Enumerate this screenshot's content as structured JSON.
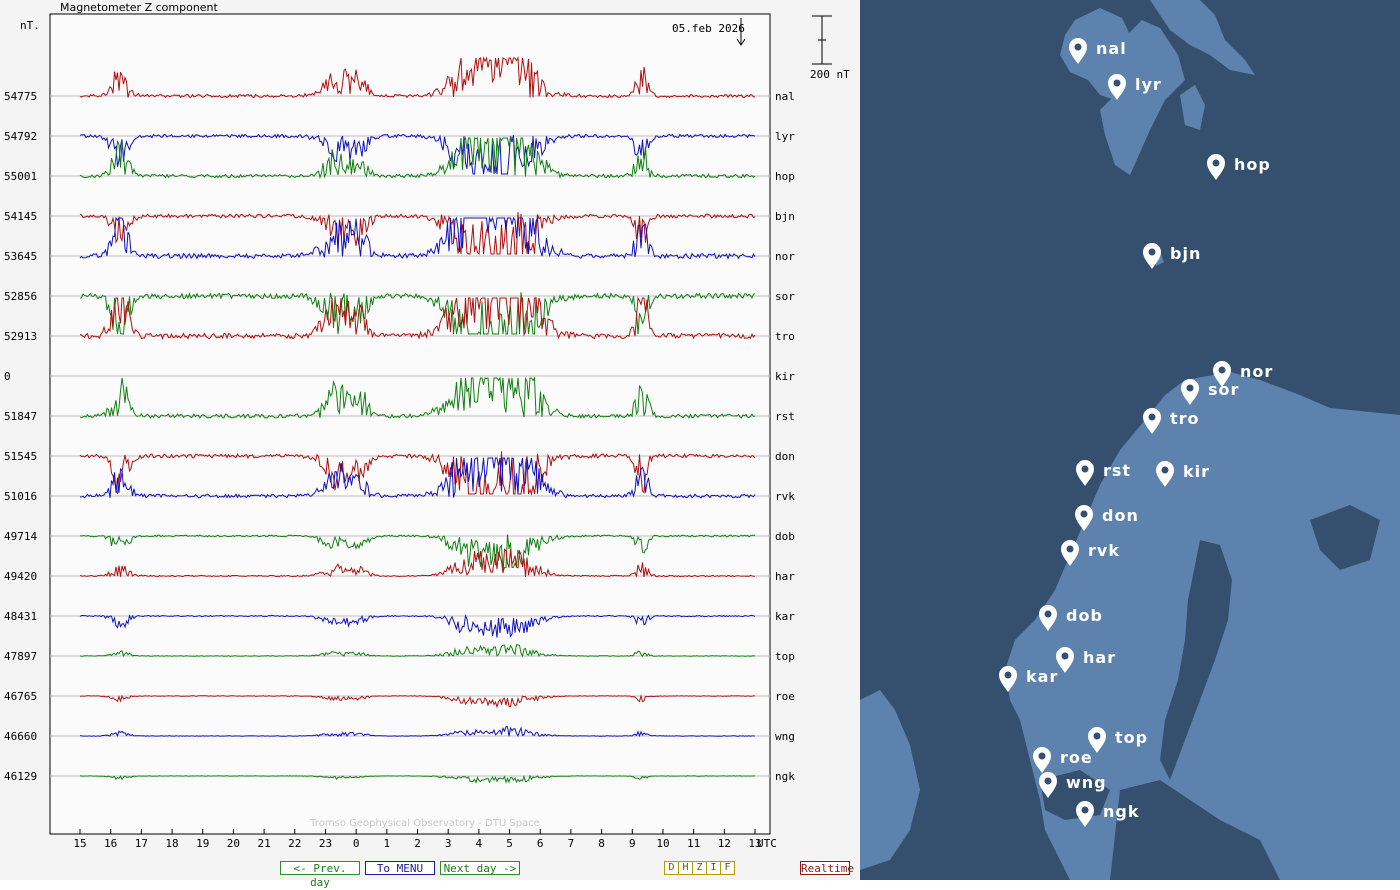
{
  "chart": {
    "title": "Magnetometer Z component",
    "y_unit": "nT.",
    "date": "05.feb 2026",
    "scale_label": "200 nT",
    "credit": "Tromso Geophysical Observatory - DTU Space",
    "utc_label": "UTC"
  },
  "chart_data": {
    "type": "line",
    "title": "Magnetometer Z component",
    "x_axis_label": "UTC",
    "x_ticks": [
      "15",
      "16",
      "17",
      "18",
      "19",
      "20",
      "21",
      "22",
      "23",
      "0",
      "1",
      "2",
      "3",
      "4",
      "5",
      "6",
      "7",
      "8",
      "9",
      "10",
      "11",
      "12",
      "13"
    ],
    "series": [
      {
        "name": "nal",
        "baseline": "54775",
        "color": "#b01010",
        "disturbance": 1.0
      },
      {
        "name": "lyr",
        "baseline": "54792",
        "color": "#1010c0",
        "disturbance": 1.05
      },
      {
        "name": "hop",
        "baseline": "55001",
        "color": "#108010",
        "disturbance": 1.1
      },
      {
        "name": "bjn",
        "baseline": "54145",
        "color": "#b01010",
        "disturbance": 1.2
      },
      {
        "name": "nor",
        "baseline": "53645",
        "color": "#1010c0",
        "disturbance": 1.6
      },
      {
        "name": "sor",
        "baseline": "52856",
        "color": "#108010",
        "disturbance": 1.7
      },
      {
        "name": "tro",
        "baseline": "52913",
        "color": "#b01010",
        "disturbance": 1.8
      },
      {
        "name": "kir",
        "baseline": "0",
        "color": "#808080",
        "disturbance": 0
      },
      {
        "name": "rst",
        "baseline": "51847",
        "color": "#108010",
        "disturbance": 1.3
      },
      {
        "name": "don",
        "baseline": "51545",
        "color": "#b01010",
        "disturbance": 1.3
      },
      {
        "name": "rvk",
        "baseline": "51016",
        "color": "#1010c0",
        "disturbance": 1.2
      },
      {
        "name": "dob",
        "baseline": "49714",
        "color": "#108010",
        "disturbance": 0.6
      },
      {
        "name": "har",
        "baseline": "49420",
        "color": "#b01010",
        "disturbance": 0.45
      },
      {
        "name": "kar",
        "baseline": "48431",
        "color": "#1010c0",
        "disturbance": 0.4
      },
      {
        "name": "top",
        "baseline": "47897",
        "color": "#108010",
        "disturbance": 0.2
      },
      {
        "name": "roe",
        "baseline": "46765",
        "color": "#b01010",
        "disturbance": 0.18
      },
      {
        "name": "wng",
        "baseline": "46660",
        "color": "#1010c0",
        "disturbance": 0.15
      },
      {
        "name": "ngk",
        "baseline": "46129",
        "color": "#108010",
        "disturbance": 0.12
      }
    ]
  },
  "buttons": {
    "prev_day": "<- Prev. day",
    "menu": "To MENU",
    "next_day": "Next day ->",
    "realtime": "Realtime",
    "components": [
      "D",
      "H",
      "Z",
      "I",
      "F"
    ]
  },
  "map": {
    "stations": [
      {
        "name": "nal"
      },
      {
        "name": "lyr"
      },
      {
        "name": "hop"
      },
      {
        "name": "bjn"
      },
      {
        "name": "nor"
      },
      {
        "name": "sor"
      },
      {
        "name": "tro"
      },
      {
        "name": "rst"
      },
      {
        "name": "kir"
      },
      {
        "name": "don"
      },
      {
        "name": "rvk"
      },
      {
        "name": "dob"
      },
      {
        "name": "har"
      },
      {
        "name": "kar"
      },
      {
        "name": "top"
      },
      {
        "name": "roe"
      },
      {
        "name": "wng"
      },
      {
        "name": "ngk"
      }
    ]
  }
}
